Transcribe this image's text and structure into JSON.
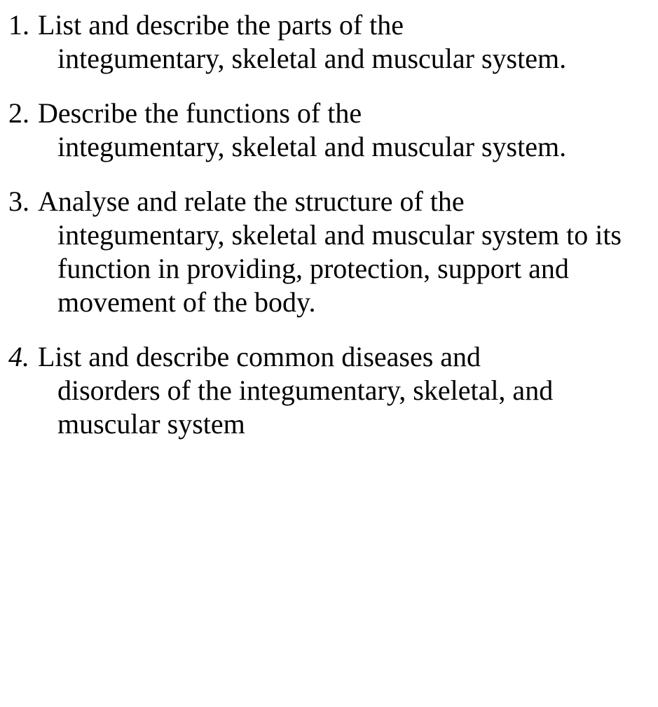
{
  "document": {
    "background_color": "#ffffff",
    "text_color": "#000000",
    "font_family": "Times New Roman",
    "font_size_pt": 30,
    "items": [
      {
        "first": "List and describe the parts of the",
        "rest": "integumentary, skeletal and muscular system.",
        "italic_number": false
      },
      {
        "first": "Describe the functions of the",
        "rest": "integumentary, skeletal and muscular system.",
        "italic_number": false
      },
      {
        "first": "Analyse and relate the structure of the",
        "rest": "integumentary, skeletal and muscular system to its function in providing, protection, support and movement of the body.",
        "italic_number": false
      },
      {
        "first": "List and describe common diseases and",
        "rest": "disorders of the integumentary, skeletal, and muscular system",
        "italic_number": true
      }
    ]
  }
}
